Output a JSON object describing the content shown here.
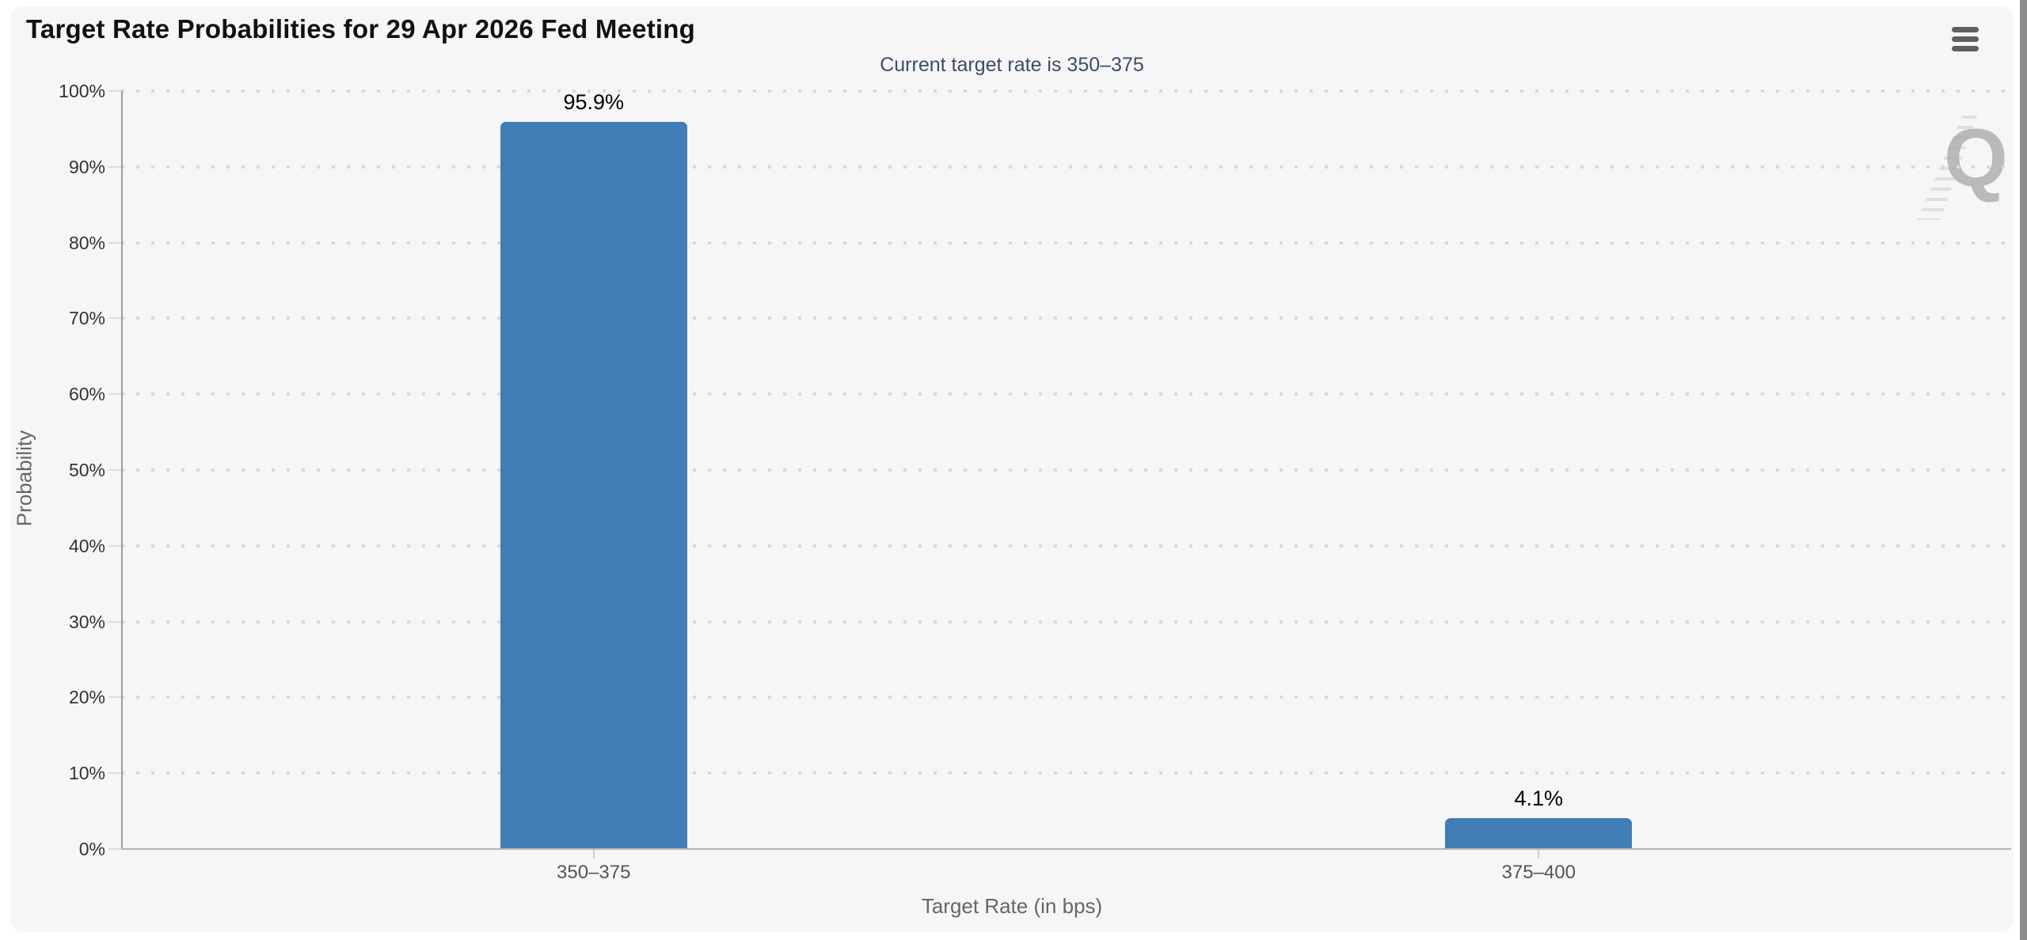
{
  "page": {
    "background": "#ffffff",
    "panel_background": "#f6f6f6",
    "scrollbar_color": "#8d8d8d"
  },
  "header": {
    "title": "Target Rate Probabilities for 29 Apr 2026 Fed Meeting",
    "menu_icon": "hamburger-icon"
  },
  "watermark": {
    "letter": "Q"
  },
  "chart_data": {
    "type": "bar",
    "title": "Target Rate Probabilities for 29 Apr 2026 Fed Meeting",
    "subtitle": "Current target rate is 350–375",
    "categories": [
      "350–375",
      "375–400"
    ],
    "values": [
      95.9,
      4.1
    ],
    "data_labels": [
      "95.9%",
      "4.1%"
    ],
    "xlabel": "Target Rate (in bps)",
    "ylabel": "Probability",
    "ylim": [
      0,
      100
    ],
    "y_tick_interval": 10,
    "y_tick_labels": [
      "0%",
      "10%",
      "20%",
      "30%",
      "40%",
      "50%",
      "60%",
      "70%",
      "80%",
      "90%",
      "100%"
    ],
    "grid": "horizontal dotted",
    "legend": "none",
    "bar_color": "#417eb5",
    "colors": {
      "title": "#111111",
      "subtitle": "#3c4c68",
      "tick_label": "#333333",
      "category_label": "#555555",
      "axis_title": "#666666",
      "gridline": "#d9d9d9",
      "axis_line": "#9e9e9e"
    }
  }
}
